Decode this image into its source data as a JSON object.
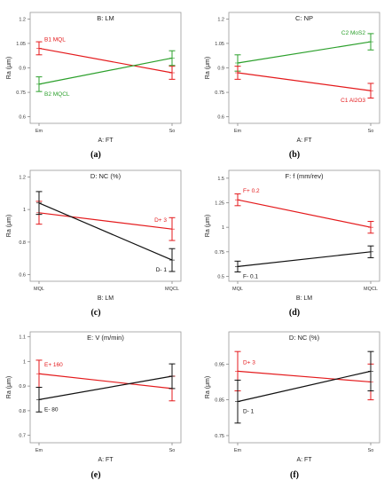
{
  "chart_data": [
    {
      "type": "line",
      "label": "(a)",
      "title": "B: LM",
      "xlabel": "A: FT",
      "ylabel": "Ra (μm)",
      "categories": [
        "Em",
        "So"
      ],
      "ylim": [
        0.56,
        1.24
      ],
      "ticks": [
        {
          "v": 0.6,
          "label": "0.6"
        },
        {
          "v": 0.75,
          "label": "0.75"
        },
        {
          "v": 0.9,
          "label": "0.9"
        },
        {
          "v": 1.05,
          "label": "1.05"
        },
        {
          "v": 1.2,
          "label": "1.2"
        }
      ],
      "series": [
        {
          "name": "B1 MQL",
          "color": "#e41a1c",
          "values": [
            1.02,
            0.87
          ],
          "err": [
            0.04,
            0.04
          ],
          "label_at": 0,
          "label_pos": "right-above"
        },
        {
          "name": "B2 MQCL",
          "color": "#2ca02c",
          "values": [
            0.8,
            0.96
          ],
          "err": [
            0.045,
            0.045
          ],
          "label_at": 0,
          "label_pos": "right-below"
        }
      ]
    },
    {
      "type": "line",
      "label": "(b)",
      "title": "C: NP",
      "xlabel": "A: FT",
      "ylabel": "Ra (μm)",
      "categories": [
        "Em",
        "So"
      ],
      "ylim": [
        0.56,
        1.24
      ],
      "ticks": [
        {
          "v": 0.6,
          "label": "0.6"
        },
        {
          "v": 0.75,
          "label": "0.75"
        },
        {
          "v": 0.9,
          "label": "0.9"
        },
        {
          "v": 1.05,
          "label": "1.05"
        },
        {
          "v": 1.2,
          "label": "1.2"
        }
      ],
      "series": [
        {
          "name": "C2 MoS2",
          "color": "#2ca02c",
          "values": [
            0.93,
            1.06
          ],
          "err": [
            0.05,
            0.05
          ],
          "label_at": 1,
          "label_pos": "left-above"
        },
        {
          "name": "C1 Al2O3",
          "color": "#e41a1c",
          "values": [
            0.87,
            0.76
          ],
          "err": [
            0.04,
            0.045
          ],
          "label_at": 1,
          "label_pos": "left-below"
        }
      ]
    },
    {
      "type": "line",
      "label": "(c)",
      "title": "D: NC (%)",
      "xlabel": "B: LM",
      "ylabel": "Ra (μm)",
      "categories": [
        "MQL",
        "MQCL"
      ],
      "ylim": [
        0.56,
        1.24
      ],
      "ticks": [
        {
          "v": 0.6,
          "label": "0.6"
        },
        {
          "v": 0.8,
          "label": "0.8"
        },
        {
          "v": 1.0,
          "label": "1"
        },
        {
          "v": 1.2,
          "label": "1.2"
        }
      ],
      "series": [
        {
          "name": "D+ 3",
          "color": "#e41a1c",
          "values": [
            0.98,
            0.88
          ],
          "err": [
            0.07,
            0.07
          ],
          "label_at": 1,
          "label_pos": "left-above"
        },
        {
          "name": "D- 1",
          "color": "#111111",
          "values": [
            1.04,
            0.69
          ],
          "err": [
            0.07,
            0.07
          ],
          "label_at": 1,
          "label_pos": "left-below"
        }
      ]
    },
    {
      "type": "line",
      "label": "(d)",
      "title": "F: f (mm/rev)",
      "xlabel": "B: LM",
      "ylabel": "Ra (μm)",
      "categories": [
        "MQL",
        "MQCL"
      ],
      "ylim": [
        0.45,
        1.58
      ],
      "ticks": [
        {
          "v": 0.5,
          "label": "0.5"
        },
        {
          "v": 0.75,
          "label": "0.75"
        },
        {
          "v": 1.0,
          "label": "1"
        },
        {
          "v": 1.25,
          "label": "1.25"
        },
        {
          "v": 1.5,
          "label": "1.5"
        }
      ],
      "series": [
        {
          "name": "F+ 0.2",
          "color": "#e41a1c",
          "values": [
            1.28,
            1.0
          ],
          "err": [
            0.06,
            0.06
          ],
          "label_at": 0,
          "label_pos": "right-above"
        },
        {
          "name": "F- 0.1",
          "color": "#111111",
          "values": [
            0.6,
            0.75
          ],
          "err": [
            0.055,
            0.06
          ],
          "label_at": 0,
          "label_pos": "right-below"
        }
      ]
    },
    {
      "type": "line",
      "label": "(e)",
      "title": "E: V (m/min)",
      "xlabel": "A: FT",
      "ylabel": "Ra (μm)",
      "categories": [
        "Em",
        "So"
      ],
      "ylim": [
        0.67,
        1.12
      ],
      "ticks": [
        {
          "v": 0.7,
          "label": "0.7"
        },
        {
          "v": 0.8,
          "label": "0.8"
        },
        {
          "v": 0.9,
          "label": "0.9"
        },
        {
          "v": 1.0,
          "label": "1"
        },
        {
          "v": 1.1,
          "label": "1.1"
        }
      ],
      "series": [
        {
          "name": "E+ 160",
          "color": "#e41a1c",
          "values": [
            0.95,
            0.89
          ],
          "err": [
            0.055,
            0.05
          ],
          "label_at": 0,
          "label_pos": "right-above"
        },
        {
          "name": "E- 80",
          "color": "#111111",
          "values": [
            0.845,
            0.94
          ],
          "err": [
            0.05,
            0.05
          ],
          "label_at": 0,
          "label_pos": "right-below"
        }
      ]
    },
    {
      "type": "line",
      "label": "(f)",
      "title": "D: NC (%)",
      "xlabel": "A: FT",
      "ylabel": "Ra (μm)",
      "categories": [
        "Em",
        "So"
      ],
      "ylim": [
        0.73,
        1.04
      ],
      "ticks": [
        {
          "v": 0.75,
          "label": "0.75"
        },
        {
          "v": 0.85,
          "label": "0.85"
        },
        {
          "v": 0.95,
          "label": "0.95"
        }
      ],
      "series": [
        {
          "name": "D+ 3",
          "color": "#e41a1c",
          "values": [
            0.93,
            0.9
          ],
          "err": [
            0.055,
            0.05
          ],
          "label_at": 0,
          "label_pos": "right-above"
        },
        {
          "name": "D- 1",
          "color": "#111111",
          "values": [
            0.845,
            0.93
          ],
          "err": [
            0.06,
            0.055
          ],
          "label_at": 0,
          "label_pos": "right-below"
        }
      ]
    }
  ]
}
